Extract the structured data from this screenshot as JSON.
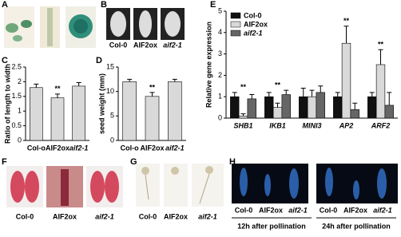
{
  "panels": [
    {
      "label": "A"
    },
    {
      "label": "B",
      "captions": [
        "Col-0",
        "AIF2ox",
        "aif2-1"
      ]
    },
    {
      "label": "F",
      "captions": [
        "Col-0",
        "AIF2ox",
        "aif2-1"
      ]
    },
    {
      "label": "G",
      "captions": [
        "Col-0",
        "AIF2ox",
        "aif2-1"
      ]
    },
    {
      "label": "H",
      "groups": [
        {
          "captions": [
            "Col-0",
            "AIF2ox",
            "aif2-1"
          ],
          "note": "12h after pollination"
        },
        {
          "captions": [
            "Col-0",
            "AIF2ox",
            "aif2-1"
          ],
          "note": "24h after pollination"
        }
      ]
    }
  ],
  "chart_data": [
    {
      "type": "bar",
      "panel": "C",
      "y_label": "Ratio of length to width",
      "categories": [
        "Col-o",
        "AIF2ox",
        "aif2-1"
      ],
      "values": [
        1.8,
        1.45,
        1.85
      ],
      "errors": [
        0.12,
        0.13,
        0.12
      ],
      "significance": [
        null,
        "**",
        null
      ],
      "color": "#d9d9d9",
      "ylim": [
        0,
        2.5
      ],
      "yticks": [
        0,
        0.5,
        1,
        1.5,
        2,
        2.5
      ]
    },
    {
      "type": "bar",
      "panel": "D",
      "y_label": "seed weight (mm)",
      "categories": [
        "Col-o",
        "AIF2ox",
        "aif2-1"
      ],
      "values": [
        12,
        9,
        12
      ],
      "errors": [
        0.5,
        0.8,
        0.5
      ],
      "significance": [
        null,
        "**",
        null
      ],
      "color": "#d9d9d9",
      "ylim": [
        0,
        15
      ],
      "yticks": [
        0,
        5,
        10,
        15
      ]
    },
    {
      "type": "grouped-bar",
      "panel": "E",
      "y_label": "Relative gene expression",
      "categories": [
        "SHB1",
        "IKB1",
        "MINI3",
        "AP2",
        "ARF2"
      ],
      "series": [
        {
          "name": "Col-0",
          "color": "#111111",
          "values": [
            1,
            1,
            1,
            1,
            1
          ],
          "errors": [
            0.2,
            0.2,
            0.4,
            0.2,
            0.2
          ]
        },
        {
          "name": "AIF2ox",
          "color": "#d9d9d9",
          "values": [
            0.1,
            0.5,
            1.0,
            3.5,
            2.5
          ],
          "errors": [
            0.1,
            0.2,
            0.3,
            0.8,
            0.7
          ]
        },
        {
          "name": "aif2-1",
          "color": "#666666",
          "values": [
            0.9,
            1.1,
            1.2,
            0.4,
            0.6
          ],
          "errors": [
            0.2,
            0.2,
            0.3,
            0.3,
            0.6
          ]
        }
      ],
      "significance": [
        "**",
        "**",
        null,
        "**",
        "**"
      ],
      "legend": "upper left",
      "ylim": [
        0,
        5
      ],
      "yticks": [
        0,
        1,
        2,
        3,
        4,
        5
      ]
    }
  ]
}
